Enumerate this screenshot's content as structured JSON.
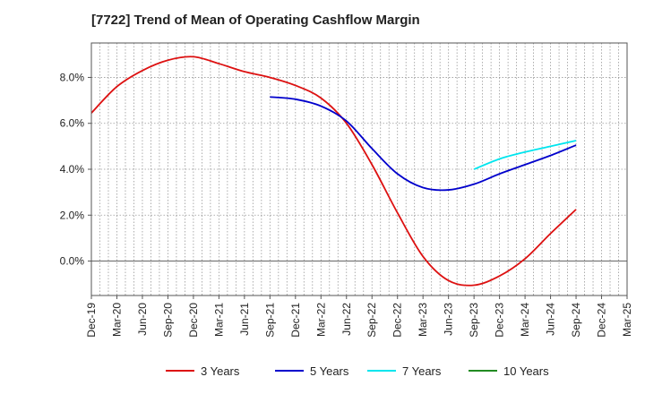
{
  "chart_data": {
    "type": "line",
    "title": "[7722]  Trend of Mean of Operating Cashflow Margin",
    "x_categories": [
      "Dec-19",
      "Mar-20",
      "Jun-20",
      "Sep-20",
      "Dec-20",
      "Mar-21",
      "Jun-21",
      "Sep-21",
      "Dec-21",
      "Mar-22",
      "Jun-22",
      "Sep-22",
      "Dec-22",
      "Mar-23",
      "Jun-23",
      "Sep-23",
      "Dec-23",
      "Mar-24",
      "Jun-24",
      "Sep-24",
      "Dec-24",
      "Mar-25"
    ],
    "y_ticks": [
      "0.0%",
      "2.0%",
      "4.0%",
      "6.0%",
      "8.0%"
    ],
    "ylim": [
      -1.5,
      9.5
    ],
    "grid": true,
    "legend_position": "bottom",
    "series": [
      {
        "name": "3 Years",
        "color": "#dd1111",
        "values": [
          6.45,
          7.6,
          8.3,
          8.75,
          8.9,
          8.6,
          8.25,
          8.0,
          7.65,
          7.1,
          6.0,
          4.2,
          2.1,
          0.2,
          -0.85,
          -1.05,
          -0.65,
          0.1,
          1.2,
          2.25
        ]
      },
      {
        "name": "5 Years",
        "color": "#0000cc",
        "values": [
          null,
          null,
          null,
          null,
          null,
          null,
          null,
          7.15,
          7.05,
          6.75,
          6.1,
          4.9,
          3.8,
          3.2,
          3.1,
          3.35,
          3.8,
          4.2,
          4.6,
          5.05
        ]
      },
      {
        "name": "7 Years",
        "color": "#00e5ee",
        "values": [
          null,
          null,
          null,
          null,
          null,
          null,
          null,
          null,
          null,
          null,
          null,
          null,
          null,
          null,
          null,
          4.0,
          4.45,
          4.75,
          5.0,
          5.25
        ]
      },
      {
        "name": "10 Years",
        "color": "#228b22",
        "values": []
      }
    ]
  }
}
